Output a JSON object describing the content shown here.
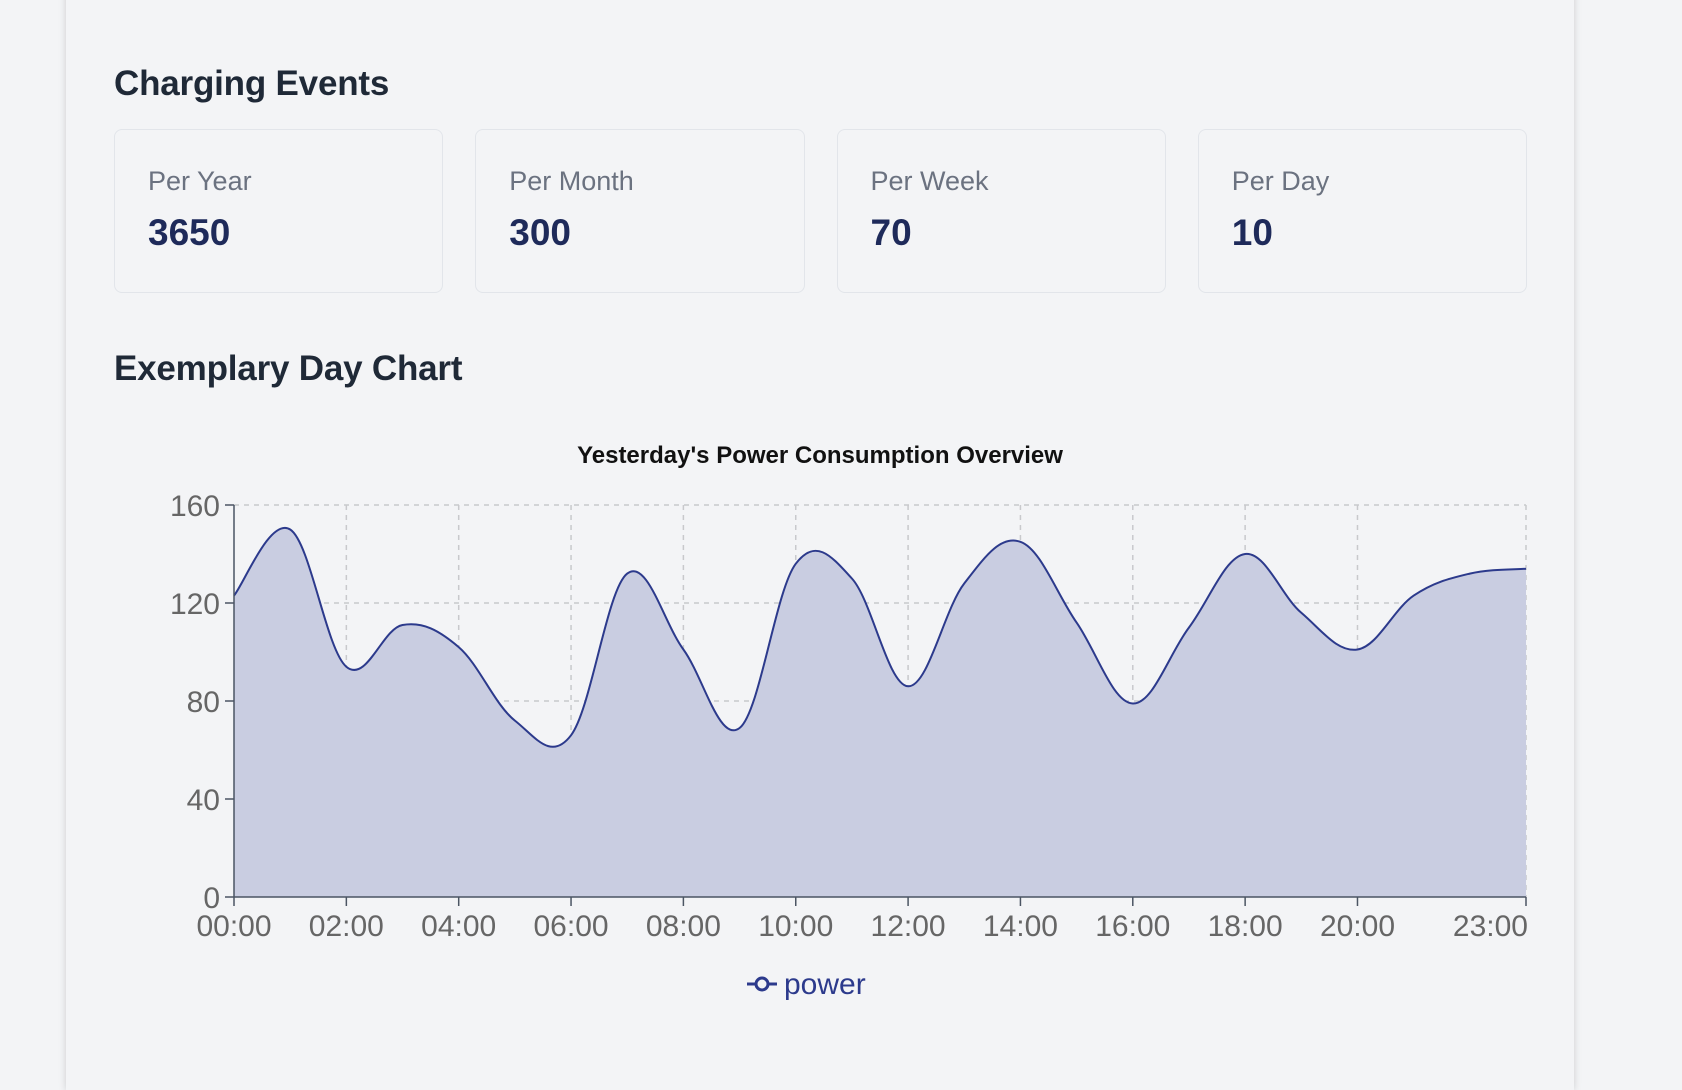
{
  "charging_events": {
    "title": "Charging Events",
    "stats": [
      {
        "label": "Per Year",
        "value": "3650"
      },
      {
        "label": "Per Month",
        "value": "300"
      },
      {
        "label": "Per Week",
        "value": "70"
      },
      {
        "label": "Per Day",
        "value": "10"
      }
    ]
  },
  "day_chart": {
    "section_title": "Exemplary Day Chart"
  },
  "colors": {
    "series_line": "#2c3a8c",
    "series_fill": "#c9cde1",
    "stat_value": "#1e2a5a"
  },
  "chart_data": {
    "type": "area",
    "title": "Yesterday's Power Consumption Overview",
    "xlabel": "",
    "ylabel": "",
    "x_tick_labels": [
      "00:00",
      "02:00",
      "04:00",
      "06:00",
      "08:00",
      "10:00",
      "12:00",
      "14:00",
      "16:00",
      "18:00",
      "20:00",
      "23:00"
    ],
    "x": [
      "00:00",
      "01:00",
      "02:00",
      "03:00",
      "04:00",
      "05:00",
      "06:00",
      "07:00",
      "08:00",
      "09:00",
      "10:00",
      "11:00",
      "12:00",
      "13:00",
      "14:00",
      "15:00",
      "16:00",
      "17:00",
      "18:00",
      "19:00",
      "20:00",
      "21:00",
      "22:00",
      "23:00"
    ],
    "y_ticks": [
      0,
      40,
      80,
      120,
      160
    ],
    "ylim": [
      0,
      160
    ],
    "grid": true,
    "legend_position": "bottom-center",
    "series": [
      {
        "name": "power",
        "values": [
          123,
          150,
          94,
          111,
          102,
          72,
          66,
          132,
          101,
          69,
          136,
          130,
          86,
          128,
          145,
          112,
          79,
          110,
          140,
          116,
          101,
          123,
          132,
          134
        ]
      }
    ]
  }
}
